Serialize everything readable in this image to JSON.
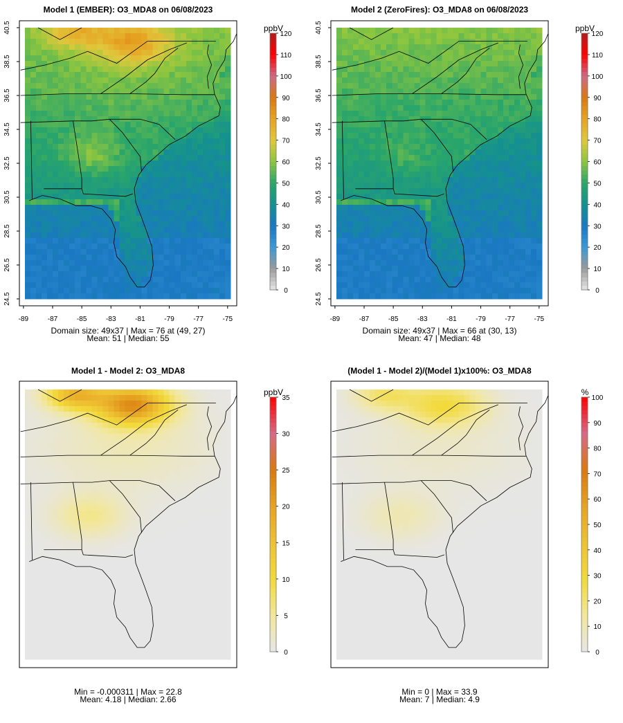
{
  "chart_data": [
    {
      "type": "heatmap",
      "title": "Model 1 (EMBER): O3_MDA8 on 06/08/2023",
      "xlabel": "",
      "ylabel": "",
      "x_ticks": [
        "-89",
        "-87",
        "-85",
        "-83",
        "-81",
        "-79",
        "-77",
        "-75"
      ],
      "y_ticks": [
        "24.5",
        "26.5",
        "28.5",
        "30.5",
        "32.5",
        "34.5",
        "36.5",
        "38.5",
        "40.5"
      ],
      "xlim": [
        -89,
        -75
      ],
      "ylim": [
        24.5,
        40.5
      ],
      "field": "model1",
      "colorbar": {
        "unit": "ppbV",
        "min": 0,
        "max": 120,
        "ticks": [
          "0",
          "10",
          "20",
          "30",
          "40",
          "50",
          "60",
          "70",
          "80",
          "90",
          "100",
          "110",
          "120"
        ]
      },
      "stats": {
        "line1": "Domain size: 49x37 | Max = 76 at (49, 27)",
        "line2": "Mean: 51 |  Median: 55"
      }
    },
    {
      "type": "heatmap",
      "title": "Model 2 (ZeroFires): O3_MDA8 on 06/08/2023",
      "xlabel": "",
      "ylabel": "",
      "x_ticks": [
        "-89",
        "-87",
        "-85",
        "-83",
        "-81",
        "-79",
        "-77",
        "-75"
      ],
      "y_ticks": [
        "24.5",
        "26.5",
        "28.5",
        "30.5",
        "32.5",
        "34.5",
        "36.5",
        "38.5",
        "40.5"
      ],
      "xlim": [
        -89,
        -75
      ],
      "ylim": [
        24.5,
        40.5
      ],
      "field": "model2",
      "colorbar": {
        "unit": "ppbV",
        "min": 0,
        "max": 120,
        "ticks": [
          "0",
          "10",
          "20",
          "30",
          "40",
          "50",
          "60",
          "70",
          "80",
          "90",
          "100",
          "110",
          "120"
        ]
      },
      "stats": {
        "line1": "Domain size: 49x37 | Max = 66 at (30, 13)",
        "line2": "Mean: 47 |  Median: 48"
      }
    },
    {
      "type": "heatmap",
      "title": "Model 1 - Model 2: O3_MDA8",
      "xlabel": "",
      "ylabel": "",
      "x_ticks": [],
      "y_ticks": [],
      "xlim": [
        -89,
        -75
      ],
      "ylim": [
        24.5,
        40.5
      ],
      "field": "diff",
      "colorbar": {
        "unit": "ppbV",
        "min": 0,
        "max": 35,
        "ticks": [
          "0",
          "5",
          "10",
          "15",
          "20",
          "25",
          "30",
          "35"
        ]
      },
      "stats": {
        "line1": "Min = -0.000311 | Max = 22.8",
        "line2": "Mean: 4.18 |  Median: 2.66"
      }
    },
    {
      "type": "heatmap",
      "title": "(Model 1 - Model 2)/(Model 1)x100%: O3_MDA8",
      "xlabel": "",
      "ylabel": "",
      "x_ticks": [],
      "y_ticks": [],
      "xlim": [
        -89,
        -75
      ],
      "ylim": [
        24.5,
        40.5
      ],
      "field": "pct",
      "colorbar": {
        "unit": "%",
        "min": 0,
        "max": 100,
        "ticks": [
          "0",
          "10",
          "20",
          "30",
          "40",
          "50",
          "60",
          "70",
          "80",
          "90",
          "100"
        ]
      },
      "stats": {
        "line1": "Min = 0 | Max = 33.9",
        "line2": "Mean: 7 |  Median: 4.9"
      }
    }
  ],
  "colors": {
    "concentration_scale": [
      "#e6e6e6",
      "#9a9a9a",
      "#3a9ad6",
      "#1a78c2",
      "#159090",
      "#2aa66a",
      "#8cc63f",
      "#e0c83c",
      "#e6a323",
      "#d97a10",
      "#cc6a86",
      "#ff0000",
      "#b31b1b"
    ],
    "difference_scale": [
      "#e6e6e6",
      "#f2e79a",
      "#f2da3a",
      "#eec233",
      "#e6a323",
      "#d97a10",
      "#d66a86",
      "#ff0000"
    ],
    "outline": "#000000"
  }
}
